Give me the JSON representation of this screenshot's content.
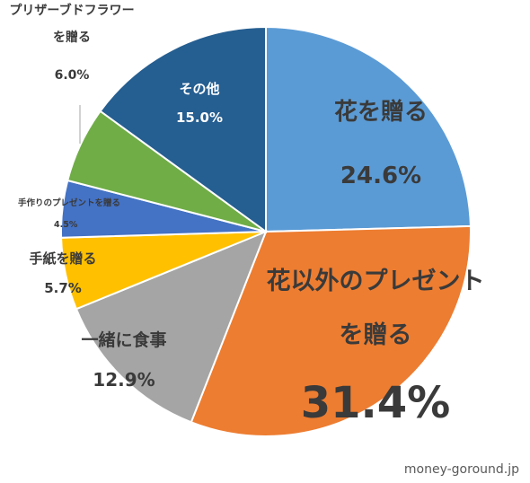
{
  "chart_data": {
    "type": "pie",
    "title": "",
    "slices": [
      {
        "label": "花を贈る",
        "value": 24.6,
        "display": "24.6%",
        "color": "#5b9bd5"
      },
      {
        "label": "花以外のプレゼント\nを贈る",
        "value": 31.4,
        "display": "31.4%",
        "color": "#ed7d31"
      },
      {
        "label": "一緒に食事",
        "value": 12.9,
        "display": "12.9%",
        "color": "#a5a5a5"
      },
      {
        "label": "手紙を贈る",
        "value": 5.7,
        "display": "5.7%",
        "color": "#ffc000"
      },
      {
        "label": "手作りのプレゼントを贈る",
        "value": 4.5,
        "display": "4.5%",
        "color": "#4472c4"
      },
      {
        "label": "プリザーブドフラワー\nを贈る",
        "value": 6.0,
        "display": "6.0%",
        "color": "#70ad47"
      },
      {
        "label": "その他",
        "value": 15.0,
        "display": "15.0%",
        "color": "#255e91"
      }
    ],
    "start_angle": "12 o'clock",
    "direction": "clockwise",
    "legend": "none"
  },
  "watermark": "money-goround.jp"
}
